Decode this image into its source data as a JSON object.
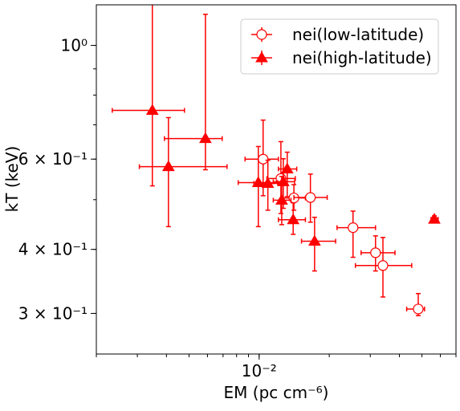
{
  "chart_data": {
    "type": "scatter",
    "xlabel": "EM (pc cm⁻⁶)",
    "ylabel": "kT (keV)",
    "xscale": "log",
    "yscale": "log",
    "xlim": [
      0.002,
      0.07
    ],
    "ylim": [
      0.25,
      1.2
    ],
    "xticks": [
      {
        "value": 0.01,
        "label": "10⁻²"
      }
    ],
    "yticks": [
      {
        "value": 1,
        "label": "10⁰"
      },
      {
        "value": 0.6,
        "label": "6 × 10⁻¹"
      },
      {
        "value": 0.4,
        "label": "4 × 10⁻¹"
      },
      {
        "value": 0.3,
        "label": "3 × 10⁻¹"
      }
    ],
    "legend": "upper right",
    "series": [
      {
        "name": "nei(low-latitude)",
        "color": "#ff0000",
        "marker": "circle",
        "x": [
          0.0104,
          0.0124,
          0.0141,
          0.0166,
          0.0253,
          0.0316,
          0.034,
          0.0482
        ],
        "y": [
          0.6,
          0.55,
          0.504,
          0.505,
          0.441,
          0.394,
          0.372,
          0.306
        ],
        "xlow": [
          0.0087,
          0.0108,
          0.0124,
          0.0141,
          0.0216,
          0.0274,
          0.0259,
          0.043
        ],
        "xhigh": [
          0.0121,
          0.0143,
          0.0158,
          0.0196,
          0.0316,
          0.0383,
          0.0452,
          0.0513
        ],
        "ylow": [
          0.509,
          0.47,
          0.477,
          0.452,
          0.386,
          0.363,
          0.323,
          0.297
        ],
        "yhigh": [
          0.715,
          0.649,
          0.535,
          0.561,
          0.475,
          0.425,
          0.422,
          0.328
        ]
      },
      {
        "name": "nei(high-latitude)",
        "color": "#ff0000",
        "marker": "triangle",
        "x": [
          0.00348,
          0.00408,
          0.00588,
          0.00992,
          0.0109,
          0.0125,
          0.0127,
          0.0132,
          0.014,
          0.0173,
          0.0565
        ],
        "y": [
          0.747,
          0.58,
          0.658,
          0.54,
          0.538,
          0.499,
          0.542,
          0.574,
          0.457,
          0.415,
          0.458
        ],
        "xlow": [
          0.00234,
          0.00306,
          0.00392,
          0.00813,
          0.0095,
          0.0115,
          0.0115,
          0.0121,
          0.0121,
          0.0152,
          0.0547
        ],
        "xhigh": [
          0.00478,
          0.00728,
          0.00694,
          0.012,
          0.0127,
          0.0137,
          0.0142,
          0.0145,
          0.0158,
          0.0213,
          0.0587
        ],
        "ylow": [
          0.532,
          0.443,
          0.572,
          0.443,
          0.477,
          0.447,
          0.481,
          0.507,
          0.428,
          0.363,
          0.452
        ],
        "yhigh": [
          1.3,
          0.723,
          1.15,
          0.635,
          0.597,
          0.555,
          0.601,
          0.619,
          0.493,
          0.462,
          0.465
        ]
      }
    ]
  }
}
